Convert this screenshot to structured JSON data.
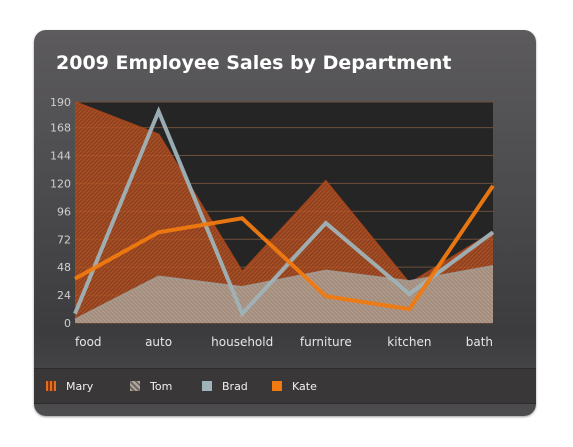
{
  "chart_data": {
    "type": "area",
    "title": "2009 Employee Sales by Department",
    "categories": [
      "food",
      "auto",
      "household",
      "furniture",
      "kitchen",
      "bath"
    ],
    "ylim": [
      0,
      190
    ],
    "yticks": [
      0,
      24,
      48,
      72,
      96,
      120,
      144,
      168,
      190
    ],
    "grid": true,
    "legend_position": "bottom",
    "series": [
      {
        "name": "Mary",
        "style": "area",
        "color": "#a8471c",
        "values": [
          190,
          162,
          44,
          122,
          34,
          78
        ]
      },
      {
        "name": "Tom",
        "style": "area",
        "color": "#a39a91",
        "values": [
          3,
          40,
          31,
          45,
          36,
          49
        ]
      },
      {
        "name": "Brad",
        "style": "line",
        "color": "#9fb3b8",
        "values": [
          8,
          182,
          8,
          86,
          25,
          78
        ]
      },
      {
        "name": "Kate",
        "style": "line",
        "color": "#f07a10",
        "values": [
          38,
          78,
          90,
          23,
          12,
          118
        ]
      }
    ]
  }
}
